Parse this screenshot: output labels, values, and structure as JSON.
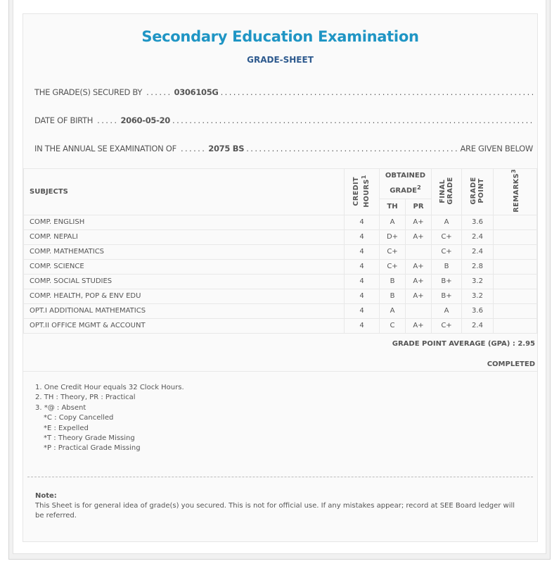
{
  "header": {
    "title": "Secondary Education Examination",
    "subtitle": "GRADE-SHEET"
  },
  "info": {
    "secured_by_label": "THE GRADE(S) SECURED BY",
    "symbol_no": "0306105G",
    "dob_label": "DATE OF BIRTH",
    "dob": "2060-05-20",
    "exam_label": "IN THE ANNUAL SE EXAMINATION OF",
    "exam_year": "2075 BS",
    "exam_suffix": "ARE GIVEN BELOW"
  },
  "table": {
    "headers": {
      "subjects": "SUBJECTS",
      "credit_hours": "CREDIT HOURS",
      "credit_sup": "1",
      "obtained_grade": "OBTAINED GRADE",
      "obtained_sup": "2",
      "th": "TH",
      "pr": "PR",
      "final_grade": "FINAL GRADE",
      "grade_point": "GRADE POINT",
      "remarks": "REMARKS",
      "remarks_sup": "3"
    },
    "rows": [
      {
        "subject": "COMP. ENGLISH",
        "ch": "4",
        "th": "A",
        "pr": "A+",
        "final": "A",
        "gp": "3.6",
        "remarks": ""
      },
      {
        "subject": "COMP. NEPALI",
        "ch": "4",
        "th": "D+",
        "pr": "A+",
        "final": "C+",
        "gp": "2.4",
        "remarks": ""
      },
      {
        "subject": "COMP. MATHEMATICS",
        "ch": "4",
        "th": "C+",
        "pr": "",
        "final": "C+",
        "gp": "2.4",
        "remarks": ""
      },
      {
        "subject": "COMP. SCIENCE",
        "ch": "4",
        "th": "C+",
        "pr": "A+",
        "final": "B",
        "gp": "2.8",
        "remarks": ""
      },
      {
        "subject": "COMP. SOCIAL STUDIES",
        "ch": "4",
        "th": "B",
        "pr": "A+",
        "final": "B+",
        "gp": "3.2",
        "remarks": ""
      },
      {
        "subject": "COMP. HEALTH, POP & ENV EDU",
        "ch": "4",
        "th": "B",
        "pr": "A+",
        "final": "B+",
        "gp": "3.2",
        "remarks": ""
      },
      {
        "subject": "OPT.I ADDITIONAL MATHEMATICS",
        "ch": "4",
        "th": "A",
        "pr": "",
        "final": "A",
        "gp": "3.6",
        "remarks": ""
      },
      {
        "subject": "OPT.II OFFICE MGMT & ACCOUNT",
        "ch": "4",
        "th": "C",
        "pr": "A+",
        "final": "C+",
        "gp": "2.4",
        "remarks": ""
      }
    ]
  },
  "summary": {
    "gpa_label": "GRADE POINT AVERAGE (GPA) :",
    "gpa": "2.95",
    "status": "COMPLETED"
  },
  "footnotes": [
    "1. One Credit Hour equals 32 Clock Hours.",
    "2. TH : Theory, PR : Practical",
    "3. *@ : Absent",
    "*C : Copy Cancelled",
    "*E : Expelled",
    "*T : Theory Grade Missing",
    "*P : Practical Grade Missing"
  ],
  "note": {
    "label": "Note:",
    "text": "This Sheet is for general idea of grade(s) you secured. This is not for official use. If any mistakes appear; record at SEE Board ledger will be referred."
  }
}
